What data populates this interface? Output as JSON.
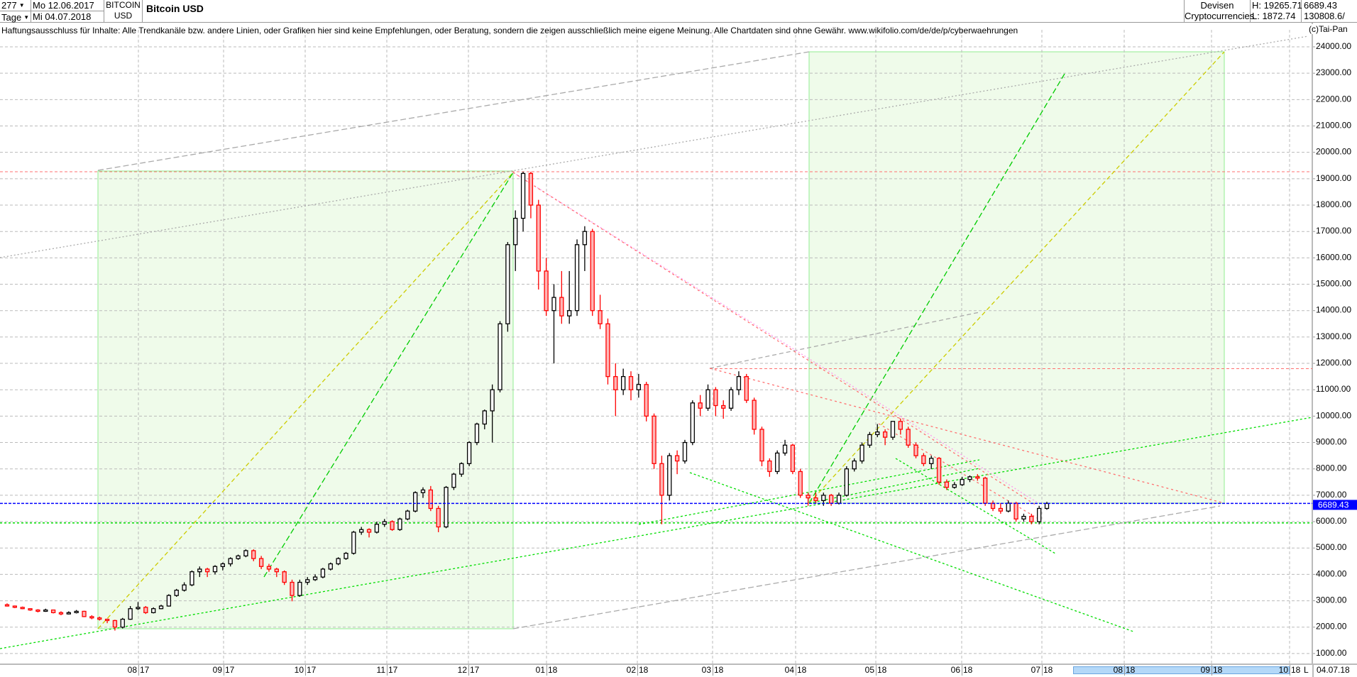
{
  "header": {
    "count_value": "277",
    "period_value": "Tage",
    "start_date": "Mo 12.06.2017",
    "end_date": "Mi 04.07.2018",
    "symbol_line1": "BITCOIN",
    "symbol_line2": "USD",
    "title": "Bitcoin USD",
    "category_line1": "Devisen",
    "category_line2": "Cryptocurrencies",
    "high": "H: 19265.71",
    "low": "L: 1872.74",
    "last": "6689.43",
    "volume": "130808.6/"
  },
  "disclaimer": "Haftungsausschluss für Inhalte: Alle Trendkanäle bzw. andere Linien, oder Grafiken hier sind keine Empfehlungen, oder Beratung, sondern die zeigen ausschließlich meine eigene Meinung. Alle Chartdaten sind ohne Gewähr.  www.wikifolio.com/de/de/p/cyberwaehrungen",
  "copyright": "(c)Tai-Pan",
  "colors": {
    "up": "#000000",
    "down": "#ff0000",
    "down_fill": "#ffb6b6",
    "last_price": "#0000ff",
    "zone_fill": "#effbea",
    "zone_border": "#90ee90",
    "grid": "#bbbbbb"
  },
  "footer": {
    "scale_mode": "L",
    "last_date": "04.07.18"
  },
  "chart_data": {
    "type": "candlestick",
    "ylim": [
      1000,
      24000
    ],
    "y_ticks": [
      "1000.00",
      "2000.00",
      "3000.00",
      "4000.00",
      "5000.00",
      "6000.00",
      "7000.00",
      "8000.00",
      "9000.00",
      "10000.00",
      "11000.00",
      "12000.00",
      "13000.00",
      "14000.00",
      "15000.00",
      "16000.00",
      "17000.00",
      "18000.00",
      "19000.00",
      "20000.00",
      "21000.00",
      "22000.00",
      "23000.00",
      "24000.00"
    ],
    "x_ticks": [
      [
        "08",
        "17"
      ],
      [
        "09",
        "17"
      ],
      [
        "10",
        "17"
      ],
      [
        "11",
        "17"
      ],
      [
        "12",
        "17"
      ],
      [
        "01",
        "18"
      ],
      [
        "02",
        "18"
      ],
      [
        "03",
        "18"
      ],
      [
        "04",
        "18"
      ],
      [
        "05",
        "18"
      ],
      [
        "06",
        "18"
      ],
      [
        "07",
        "18"
      ],
      [
        "08",
        "18"
      ],
      [
        "09",
        "18"
      ],
      [
        "10",
        "18"
      ]
    ],
    "last_price_label": "6689.43",
    "levels": {
      "high": 19265.71,
      "resistance": 11800,
      "last": 6689.43,
      "support": 5950
    },
    "ohlc": [
      [
        2850,
        2900,
        2780,
        2800
      ],
      [
        2800,
        2820,
        2720,
        2750
      ],
      [
        2750,
        2780,
        2680,
        2700
      ],
      [
        2700,
        2720,
        2620,
        2650
      ],
      [
        2650,
        2680,
        2560,
        2600
      ],
      [
        2600,
        2700,
        2580,
        2650
      ],
      [
        2650,
        2660,
        2520,
        2550
      ],
      [
        2550,
        2600,
        2450,
        2500
      ],
      [
        2500,
        2600,
        2480,
        2550
      ],
      [
        2550,
        2650,
        2520,
        2600
      ],
      [
        2600,
        2620,
        2380,
        2400
      ],
      [
        2400,
        2450,
        2300,
        2350
      ],
      [
        2350,
        2400,
        2250,
        2300
      ],
      [
        2300,
        2320,
        2150,
        2250
      ],
      [
        2250,
        2280,
        1870,
        2000
      ],
      [
        2000,
        2350,
        1950,
        2300
      ],
      [
        2300,
        2800,
        2280,
        2700
      ],
      [
        2700,
        2950,
        2650,
        2750
      ],
      [
        2750,
        2800,
        2500,
        2550
      ],
      [
        2550,
        2750,
        2520,
        2700
      ],
      [
        2700,
        2850,
        2680,
        2800
      ],
      [
        2800,
        3250,
        2780,
        3200
      ],
      [
        3200,
        3450,
        3150,
        3400
      ],
      [
        3400,
        3700,
        3350,
        3600
      ],
      [
        3600,
        4150,
        3550,
        4100
      ],
      [
        4100,
        4300,
        3900,
        4200
      ],
      [
        4200,
        4250,
        3900,
        4100
      ],
      [
        4100,
        4350,
        4000,
        4300
      ],
      [
        4300,
        4450,
        4150,
        4400
      ],
      [
        4400,
        4650,
        4300,
        4600
      ],
      [
        4600,
        4750,
        4550,
        4700
      ],
      [
        4700,
        4950,
        4650,
        4900
      ],
      [
        4900,
        4950,
        4500,
        4600
      ],
      [
        4600,
        4700,
        4200,
        4300
      ],
      [
        4300,
        4400,
        4100,
        4200
      ],
      [
        4200,
        4250,
        3900,
        4100
      ],
      [
        4100,
        4150,
        3600,
        3700
      ],
      [
        3700,
        3800,
        2980,
        3200
      ],
      [
        3200,
        3800,
        3150,
        3700
      ],
      [
        3700,
        3900,
        3600,
        3800
      ],
      [
        3800,
        4000,
        3750,
        3900
      ],
      [
        3900,
        4250,
        3850,
        4200
      ],
      [
        4200,
        4450,
        4150,
        4400
      ],
      [
        4400,
        4650,
        4350,
        4600
      ],
      [
        4600,
        4850,
        4550,
        4800
      ],
      [
        4800,
        5650,
        4750,
        5600
      ],
      [
        5600,
        5800,
        5500,
        5700
      ],
      [
        5700,
        5750,
        5400,
        5600
      ],
      [
        5600,
        6000,
        5550,
        5900
      ],
      [
        5900,
        6100,
        5800,
        6000
      ],
      [
        6000,
        6050,
        5650,
        5700
      ],
      [
        5700,
        6150,
        5650,
        6100
      ],
      [
        6100,
        6450,
        6050,
        6400
      ],
      [
        6400,
        7150,
        6350,
        7100
      ],
      [
        7100,
        7300,
        6900,
        7200
      ],
      [
        7200,
        7350,
        6400,
        6500
      ],
      [
        6500,
        6600,
        5600,
        5800
      ],
      [
        5800,
        7350,
        5750,
        7300
      ],
      [
        7300,
        7850,
        7200,
        7800
      ],
      [
        7800,
        8250,
        7700,
        8200
      ],
      [
        8200,
        9050,
        8100,
        9000
      ],
      [
        9000,
        9750,
        8900,
        9700
      ],
      [
        9700,
        10250,
        9500,
        10200
      ],
      [
        10200,
        11200,
        9000,
        11000
      ],
      [
        11000,
        13600,
        10900,
        13500
      ],
      [
        13500,
        16600,
        13200,
        16500
      ],
      [
        16500,
        17800,
        15500,
        17500
      ],
      [
        17500,
        19266,
        17000,
        19200
      ],
      [
        19200,
        19265.71,
        17500,
        18000
      ],
      [
        18000,
        18200,
        14800,
        15500
      ],
      [
        15500,
        16000,
        13800,
        14000
      ],
      [
        14000,
        15000,
        12000,
        14500
      ],
      [
        14500,
        15500,
        13500,
        13800
      ],
      [
        13800,
        15500,
        13500,
        14000
      ],
      [
        14000,
        16700,
        13800,
        16500
      ],
      [
        16500,
        17200,
        15500,
        17000
      ],
      [
        17000,
        17100,
        13800,
        14000
      ],
      [
        14000,
        14600,
        13300,
        13500
      ],
      [
        13500,
        13700,
        11200,
        11500
      ],
      [
        11500,
        12000,
        10000,
        11000
      ],
      [
        11000,
        11800,
        10800,
        11500
      ],
      [
        11500,
        11700,
        10600,
        11000
      ],
      [
        11000,
        11600,
        10700,
        11200
      ],
      [
        11200,
        11300,
        9800,
        10000
      ],
      [
        10000,
        10100,
        8000,
        8200
      ],
      [
        8200,
        8500,
        5900,
        7000
      ],
      [
        7000,
        8600,
        6800,
        8500
      ],
      [
        8500,
        8700,
        7800,
        8300
      ],
      [
        8300,
        9100,
        8200,
        9000
      ],
      [
        9000,
        10600,
        8900,
        10500
      ],
      [
        10500,
        10800,
        10000,
        10300
      ],
      [
        10300,
        11200,
        10200,
        11000
      ],
      [
        11000,
        11100,
        10000,
        10400
      ],
      [
        10400,
        10600,
        9900,
        10300
      ],
      [
        10300,
        11100,
        10200,
        11000
      ],
      [
        11000,
        11700,
        10800,
        11500
      ],
      [
        11500,
        11600,
        10500,
        10600
      ],
      [
        10600,
        10700,
        9300,
        9500
      ],
      [
        9500,
        9600,
        8100,
        8300
      ],
      [
        8300,
        8400,
        7700,
        7900
      ],
      [
        7900,
        8700,
        7800,
        8600
      ],
      [
        8600,
        9100,
        8500,
        8900
      ],
      [
        8900,
        8950,
        7800,
        7900
      ],
      [
        7900,
        8000,
        6900,
        7000
      ],
      [
        7000,
        7100,
        6600,
        6900
      ],
      [
        6900,
        7100,
        6700,
        6800
      ],
      [
        6800,
        7100,
        6600,
        7000
      ],
      [
        7000,
        7050,
        6600,
        6700
      ],
      [
        6700,
        7100,
        6650,
        7000
      ],
      [
        7000,
        8100,
        6950,
        8000
      ],
      [
        8000,
        8400,
        7900,
        8300
      ],
      [
        8300,
        9000,
        8200,
        8900
      ],
      [
        8900,
        9400,
        8800,
        9300
      ],
      [
        9300,
        9700,
        9200,
        9400
      ],
      [
        9400,
        9500,
        8900,
        9200
      ],
      [
        9200,
        9800,
        9100,
        9800
      ],
      [
        9800,
        9900,
        9300,
        9500
      ],
      [
        9500,
        9600,
        8800,
        8900
      ],
      [
        8900,
        9000,
        8400,
        8500
      ],
      [
        8500,
        8600,
        8100,
        8200
      ],
      [
        8200,
        8500,
        8000,
        8400
      ],
      [
        8400,
        8450,
        7400,
        7500
      ],
      [
        7500,
        7600,
        7200,
        7300
      ],
      [
        7300,
        7500,
        7250,
        7400
      ],
      [
        7400,
        7700,
        7350,
        7600
      ],
      [
        7600,
        7750,
        7500,
        7700
      ],
      [
        7700,
        7800,
        7550,
        7650
      ],
      [
        7650,
        7700,
        6600,
        6700
      ],
      [
        6700,
        6800,
        6400,
        6500
      ],
      [
        6500,
        6700,
        6300,
        6400
      ],
      [
        6400,
        6800,
        6350,
        6700
      ],
      [
        6700,
        6750,
        6000,
        6100
      ],
      [
        6100,
        6300,
        6000,
        6200
      ],
      [
        6200,
        6300,
        5900,
        6000
      ],
      [
        6000,
        6600,
        5900,
        6500
      ],
      [
        6500,
        6750,
        6450,
        6689.43
      ]
    ]
  }
}
